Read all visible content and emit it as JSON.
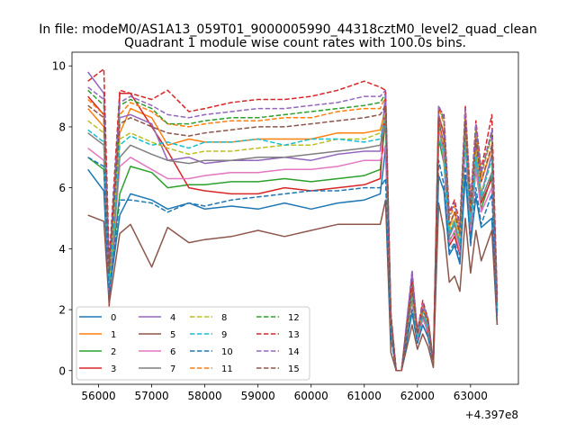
{
  "figure_title": "In file: modeM0/AS1A13_059T01_9000005990_44318cztM0_level2_quad_clean",
  "chart_data": {
    "type": "line",
    "title": "Quadrant 1 module wise count rates with 100.0s bins.",
    "xlabel": "",
    "ylabel": "",
    "x_offset_label": "+4.397e8",
    "x_offset": 439700000,
    "xlim": [
      55500,
      63900
    ],
    "ylim": [
      -0.45,
      10.45
    ],
    "xticks": [
      56000,
      57000,
      58000,
      59000,
      60000,
      61000,
      62000,
      63000
    ],
    "xtick_labels": [
      "56000",
      "57000",
      "58000",
      "59000",
      "60000",
      "61000",
      "62000",
      "63000"
    ],
    "yticks": [
      0,
      2,
      4,
      6,
      8,
      10
    ],
    "ytick_labels": [
      "0",
      "2",
      "4",
      "6",
      "8",
      "10"
    ],
    "grid": false,
    "legend_position": "lower-left",
    "legend_columns": 4,
    "bin_size_s": 100,
    "x": [
      55800,
      56100,
      56200,
      56400,
      56600,
      57000,
      57300,
      57700,
      58000,
      58500,
      59000,
      59500,
      60000,
      60500,
      61000,
      61300,
      61400,
      61500,
      61600,
      61700,
      61900,
      62000,
      62100,
      62200,
      62300,
      62400,
      62500,
      62600,
      62700,
      62800,
      62900,
      63000,
      63100,
      63200,
      63400,
      63500
    ],
    "series": [
      {
        "name": "0",
        "color": "#1f77b4",
        "linestyle": "solid",
        "values": [
          6.6,
          5.9,
          2.5,
          5.1,
          5.8,
          5.6,
          5.3,
          5.5,
          5.3,
          5.4,
          5.3,
          5.5,
          5.3,
          5.5,
          5.6,
          5.8,
          7.3,
          1.2,
          0,
          0,
          1.9,
          0.9,
          1.5,
          1.1,
          0.3,
          6.4,
          5.9,
          3.8,
          4.1,
          3.5,
          6.4,
          4.2,
          5.7,
          4.7,
          5.0,
          1.5
        ]
      },
      {
        "name": "1",
        "color": "#ff7f0e",
        "linestyle": "solid",
        "values": [
          8.6,
          8.0,
          3.1,
          7.8,
          8.6,
          8.3,
          7.4,
          7.6,
          7.5,
          7.5,
          7.6,
          7.6,
          7.6,
          7.8,
          7.8,
          7.9,
          8.6,
          1.8,
          0,
          0,
          2.7,
          1.2,
          2.0,
          1.6,
          0.2,
          8.4,
          7.8,
          4.7,
          5.2,
          4.4,
          8.2,
          5.2,
          7.6,
          6.2,
          7.3,
          2.0
        ]
      },
      {
        "name": "2",
        "color": "#2ca02c",
        "linestyle": "solid",
        "values": [
          7.0,
          6.6,
          2.7,
          5.8,
          6.7,
          6.5,
          6.0,
          6.1,
          6.1,
          6.2,
          6.2,
          6.3,
          6.2,
          6.3,
          6.4,
          6.6,
          8.2,
          1.4,
          0,
          0,
          2.3,
          1.0,
          1.7,
          1.3,
          0.2,
          7.6,
          6.8,
          4.3,
          4.5,
          3.9,
          7.5,
          4.6,
          6.6,
          5.3,
          6.4,
          2.3
        ]
      },
      {
        "name": "3",
        "color": "#d62728",
        "linestyle": "solid",
        "values": [
          9.0,
          8.4,
          2.1,
          9.1,
          9.1,
          8.0,
          7.2,
          6.0,
          5.9,
          5.8,
          5.8,
          6.0,
          5.9,
          6.0,
          6.1,
          6.3,
          8.8,
          1.3,
          0,
          0,
          2.5,
          1.0,
          1.8,
          1.2,
          0.2,
          8.2,
          7.4,
          4.1,
          4.4,
          3.8,
          8.3,
          4.5,
          7.2,
          5.5,
          6.3,
          2.0
        ]
      },
      {
        "name": "4",
        "color": "#9467bd",
        "linestyle": "solid",
        "values": [
          9.8,
          9.1,
          3.1,
          8.3,
          8.4,
          8.1,
          6.9,
          7.0,
          6.8,
          6.9,
          6.9,
          7.0,
          6.9,
          7.1,
          7.2,
          7.2,
          9.1,
          1.6,
          0,
          0,
          3.2,
          1.2,
          2.2,
          1.4,
          0.3,
          8.4,
          7.7,
          4.5,
          4.9,
          4.1,
          8.3,
          5.2,
          7.4,
          5.8,
          7.1,
          1.8
        ]
      },
      {
        "name": "5",
        "color": "#8c564b",
        "linestyle": "solid",
        "values": [
          5.1,
          4.9,
          2.2,
          4.5,
          4.8,
          3.4,
          4.7,
          4.2,
          4.3,
          4.4,
          4.6,
          4.4,
          4.6,
          4.8,
          4.8,
          4.8,
          5.6,
          0.6,
          0,
          0,
          1.5,
          0.7,
          1.2,
          0.8,
          0.1,
          5.5,
          4.6,
          2.9,
          3.1,
          2.6,
          5.0,
          3.2,
          4.6,
          3.6,
          4.6,
          1.5
        ]
      },
      {
        "name": "6",
        "color": "#e377c2",
        "linestyle": "solid",
        "values": [
          7.3,
          6.9,
          2.5,
          6.7,
          7.0,
          6.6,
          6.3,
          6.3,
          6.4,
          6.5,
          6.5,
          6.6,
          6.6,
          6.7,
          6.9,
          6.9,
          7.4,
          1.4,
          0,
          0,
          2.3,
          1.0,
          1.7,
          1.3,
          0.2,
          8.0,
          6.9,
          4.2,
          4.6,
          3.9,
          7.4,
          4.6,
          6.7,
          5.2,
          6.0,
          2.0
        ]
      },
      {
        "name": "7",
        "color": "#7f7f7f",
        "linestyle": "solid",
        "values": [
          7.8,
          7.4,
          2.7,
          7.0,
          7.4,
          7.1,
          6.9,
          6.8,
          6.9,
          6.9,
          7.0,
          7.0,
          7.1,
          7.2,
          7.3,
          7.4,
          8.1,
          1.5,
          0,
          0,
          2.4,
          1.1,
          1.8,
          1.4,
          0.2,
          8.1,
          7.2,
          4.4,
          4.8,
          4.1,
          7.8,
          4.8,
          7.0,
          5.6,
          6.5,
          2.1
        ]
      },
      {
        "name": "8",
        "color": "#bcbd22",
        "linestyle": "dashed",
        "values": [
          8.2,
          7.8,
          2.9,
          7.6,
          7.8,
          7.5,
          7.3,
          7.1,
          7.2,
          7.2,
          7.3,
          7.4,
          7.4,
          7.6,
          7.6,
          7.8,
          8.5,
          1.6,
          0,
          0,
          2.5,
          1.1,
          1.9,
          1.5,
          0.2,
          8.0,
          7.4,
          4.6,
          5.0,
          4.2,
          8.0,
          5.0,
          7.2,
          5.8,
          6.9,
          2.1
        ]
      },
      {
        "name": "9",
        "color": "#17becf",
        "linestyle": "dashed",
        "values": [
          7.9,
          7.5,
          2.8,
          7.4,
          7.7,
          7.4,
          7.5,
          7.3,
          7.5,
          7.5,
          7.6,
          7.4,
          7.6,
          7.6,
          7.5,
          7.6,
          8.3,
          1.5,
          0,
          0,
          2.6,
          1.1,
          1.9,
          1.4,
          0.2,
          7.6,
          7.2,
          4.5,
          4.9,
          4.2,
          7.6,
          4.9,
          7.0,
          5.7,
          7.0,
          2.0
        ]
      },
      {
        "name": "10",
        "color": "#1f77b4",
        "linestyle": "dashed",
        "values": [
          7.0,
          6.7,
          2.5,
          5.6,
          5.6,
          5.5,
          5.2,
          5.5,
          5.4,
          5.6,
          5.7,
          5.8,
          5.9,
          5.9,
          6.0,
          6.0,
          6.3,
          1.1,
          0,
          0,
          2.0,
          0.9,
          1.5,
          1.1,
          0.2,
          6.9,
          6.1,
          3.9,
          4.2,
          3.6,
          6.7,
          4.1,
          6.0,
          4.8,
          5.8,
          1.8
        ]
      },
      {
        "name": "11",
        "color": "#ff7f0e",
        "linestyle": "dashed",
        "values": [
          8.9,
          8.4,
          3.3,
          8.4,
          8.8,
          8.5,
          8.1,
          8.0,
          8.1,
          8.2,
          8.2,
          8.3,
          8.3,
          8.5,
          8.6,
          8.6,
          9.0,
          1.8,
          0,
          0,
          2.8,
          1.2,
          2.1,
          1.6,
          0.2,
          8.6,
          8.1,
          5.0,
          5.4,
          4.6,
          8.5,
          5.4,
          7.9,
          6.4,
          7.7,
          2.3
        ]
      },
      {
        "name": "12",
        "color": "#2ca02c",
        "linestyle": "dashed",
        "values": [
          9.2,
          8.7,
          3.4,
          8.7,
          8.9,
          8.6,
          8.1,
          8.1,
          8.2,
          8.3,
          8.3,
          8.4,
          8.5,
          8.6,
          8.7,
          8.8,
          9.1,
          1.8,
          0,
          0,
          2.9,
          1.3,
          2.2,
          1.7,
          0.3,
          8.7,
          8.2,
          5.1,
          5.5,
          4.7,
          8.6,
          5.5,
          8.0,
          6.5,
          7.8,
          2.4
        ]
      },
      {
        "name": "13",
        "color": "#d62728",
        "linestyle": "dashed",
        "values": [
          9.5,
          9.9,
          3.6,
          9.2,
          9.1,
          8.9,
          9.2,
          8.5,
          8.6,
          8.8,
          8.9,
          8.9,
          9.0,
          9.2,
          9.5,
          9.3,
          9.2,
          1.9,
          0,
          0,
          3.0,
          1.3,
          2.3,
          1.7,
          0.3,
          8.6,
          8.4,
          5.2,
          5.6,
          4.8,
          8.7,
          5.6,
          8.2,
          6.6,
          8.4,
          2.5
        ]
      },
      {
        "name": "14",
        "color": "#9467bd",
        "linestyle": "dashed",
        "values": [
          9.3,
          8.9,
          3.4,
          8.8,
          9.0,
          8.7,
          8.4,
          8.3,
          8.4,
          8.5,
          8.6,
          8.6,
          8.7,
          8.8,
          9.0,
          9.0,
          9.2,
          1.8,
          0,
          0,
          3.3,
          1.3,
          2.2,
          1.7,
          0.3,
          8.7,
          8.3,
          5.1,
          5.5,
          4.7,
          8.6,
          5.5,
          8.1,
          6.5,
          7.9,
          2.4
        ]
      },
      {
        "name": "15",
        "color": "#8c564b",
        "linestyle": "dashed",
        "values": [
          8.7,
          8.3,
          3.2,
          8.1,
          8.3,
          8.0,
          7.8,
          7.7,
          7.8,
          7.9,
          8.0,
          8.0,
          8.1,
          8.2,
          8.3,
          8.4,
          8.7,
          1.7,
          0,
          0,
          2.7,
          1.2,
          2.0,
          1.6,
          0.2,
          8.3,
          7.8,
          4.8,
          5.2,
          4.5,
          8.2,
          5.2,
          7.6,
          6.2,
          7.4,
          2.2
        ]
      }
    ]
  }
}
